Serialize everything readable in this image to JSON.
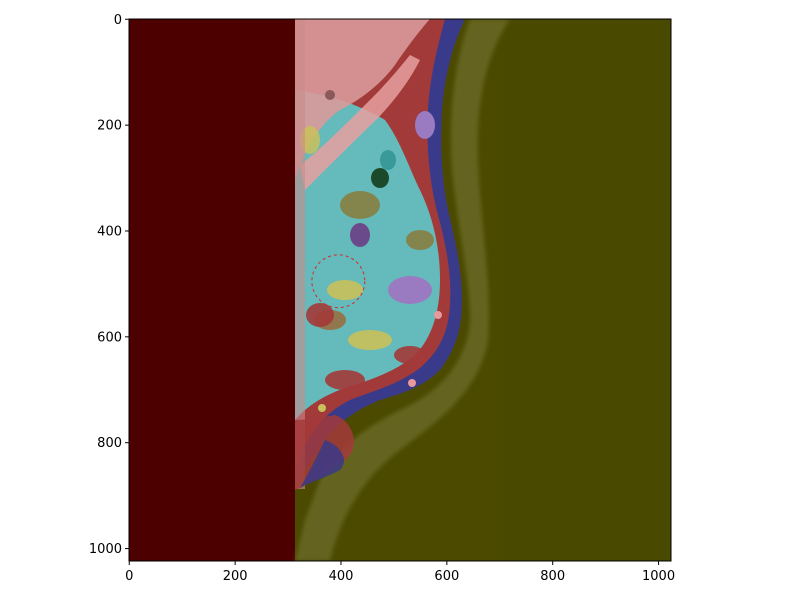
{
  "figure": {
    "type": "image-with-segmentation-overlay",
    "x_axis": {
      "range": [
        0,
        1023
      ],
      "ticks": [
        0,
        200,
        400,
        600,
        800,
        1000
      ]
    },
    "y_axis": {
      "range": [
        0,
        1023
      ],
      "inverted": true,
      "ticks": [
        0,
        200,
        400,
        600,
        800,
        1000
      ]
    },
    "annotation": {
      "shape": "dashed-circle",
      "center": [
        395,
        495
      ],
      "radius": 50,
      "color": "#d62728"
    },
    "overlay_colors": {
      "background_left": "#4d0000",
      "background_right": "#4b4a00",
      "tissue_pink": "#d99a9a",
      "tissue_cyan": "#5fc7c7",
      "tissue_red": "#a33a3a",
      "tissue_purple": "#3a3a8a",
      "tissue_violet": "#9a7ac0",
      "tissue_yellow": "#c9c15a",
      "tissue_olive": "#8a7a3a",
      "tissue_green": "#3a5a3a"
    }
  }
}
